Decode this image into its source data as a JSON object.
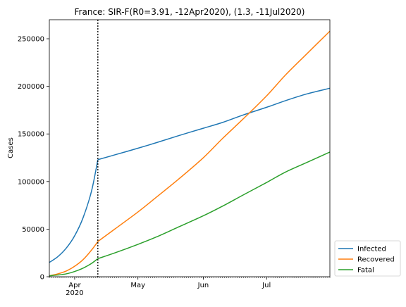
{
  "chart_data": {
    "type": "line",
    "title": "France: SIR-F(R0=3.91, -12Apr2020), (1.3, -11Jul2020)",
    "xlabel": "",
    "ylabel": "Cases",
    "x_start": "2020-03-20",
    "x_end": "2020-07-31",
    "ylim": [
      0,
      270000
    ],
    "y_ticks": [
      0,
      50000,
      100000,
      150000,
      200000,
      250000
    ],
    "y_tick_labels": [
      "0",
      "50000",
      "100000",
      "150000",
      "200000",
      "250000"
    ],
    "x_ticks": [
      {
        "date": "2020-04-01",
        "label": "Apr",
        "sublabel": "2020"
      },
      {
        "date": "2020-05-01",
        "label": "May",
        "sublabel": ""
      },
      {
        "date": "2020-06-01",
        "label": "Jun",
        "sublabel": ""
      },
      {
        "date": "2020-07-01",
        "label": "Jul",
        "sublabel": ""
      }
    ],
    "change_point": "2020-04-12",
    "x": [
      "2020-03-20",
      "2020-03-24",
      "2020-03-28",
      "2020-04-01",
      "2020-04-05",
      "2020-04-09",
      "2020-04-12",
      "2020-04-20",
      "2020-05-01",
      "2020-05-10",
      "2020-05-20",
      "2020-06-01",
      "2020-06-10",
      "2020-06-20",
      "2020-07-01",
      "2020-07-10",
      "2020-07-20",
      "2020-07-31"
    ],
    "series": [
      {
        "name": "Infected",
        "color": "#1f77b4",
        "values": [
          15000,
          21000,
          30000,
          43000,
          62000,
          90000,
          123000,
          128000,
          135000,
          141000,
          148000,
          156000,
          162000,
          170000,
          178000,
          185000,
          192000,
          198000
        ]
      },
      {
        "name": "Recovered",
        "color": "#ff7f0e",
        "values": [
          1000,
          3000,
          6000,
          11000,
          18000,
          28000,
          37000,
          50000,
          68000,
          84000,
          102000,
          125000,
          145000,
          166000,
          190000,
          212000,
          234000,
          258000
        ]
      },
      {
        "name": "Fatal",
        "color": "#2ca02c",
        "values": [
          1000,
          1800,
          3000,
          5500,
          9000,
          14000,
          19000,
          25000,
          34000,
          42000,
          52000,
          64000,
          74000,
          86000,
          99000,
          110000,
          120000,
          131000
        ]
      }
    ],
    "legend_position": "outside-bottom-right",
    "grid": false
  }
}
